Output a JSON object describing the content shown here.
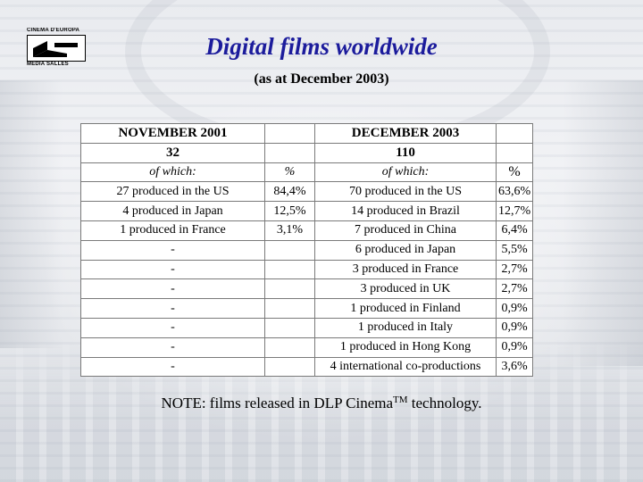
{
  "logo": {
    "top_text": "CINEMA D'EUROPA",
    "bottom_text": "MEDIA SALLES"
  },
  "title": "Digital films worldwide",
  "subtitle": "(as at December 2003)",
  "table": {
    "left_period": "NOVEMBER 2001",
    "right_period": "DECEMBER 2003",
    "left_total": "32",
    "right_total": "110",
    "of_which_label": "of which:",
    "percent_label": "%",
    "rows": [
      {
        "left": "27 produced in the US",
        "left_pct": "84,4%",
        "right": "70 produced in the US",
        "right_pct": "63,6%"
      },
      {
        "left": "4 produced in Japan",
        "left_pct": "12,5%",
        "right": "14 produced in Brazil",
        "right_pct": "12,7%"
      },
      {
        "left": "1 produced in France",
        "left_pct": "3,1%",
        "right": "7 produced in China",
        "right_pct": "6,4%"
      },
      {
        "left": "-",
        "left_pct": "",
        "right": "6 produced in Japan",
        "right_pct": "5,5%"
      },
      {
        "left": "-",
        "left_pct": "",
        "right": "3 produced in France",
        "right_pct": "2,7%"
      },
      {
        "left": "-",
        "left_pct": "",
        "right": "3 produced in UK",
        "right_pct": "2,7%"
      },
      {
        "left": "-",
        "left_pct": "",
        "right": "1 produced in Finland",
        "right_pct": "0,9%"
      },
      {
        "left": "-",
        "left_pct": "",
        "right": "1 produced in Italy",
        "right_pct": "0,9%"
      },
      {
        "left": "-",
        "left_pct": "",
        "right": "1 produced in Hong Kong",
        "right_pct": "0,9%"
      },
      {
        "left": "-",
        "left_pct": "",
        "right": "4 international co-productions",
        "right_pct": "3,6%"
      }
    ]
  },
  "note": {
    "prefix": "NOTE: films released in DLP Cinema",
    "trademark": "TM",
    "suffix": " technology."
  }
}
